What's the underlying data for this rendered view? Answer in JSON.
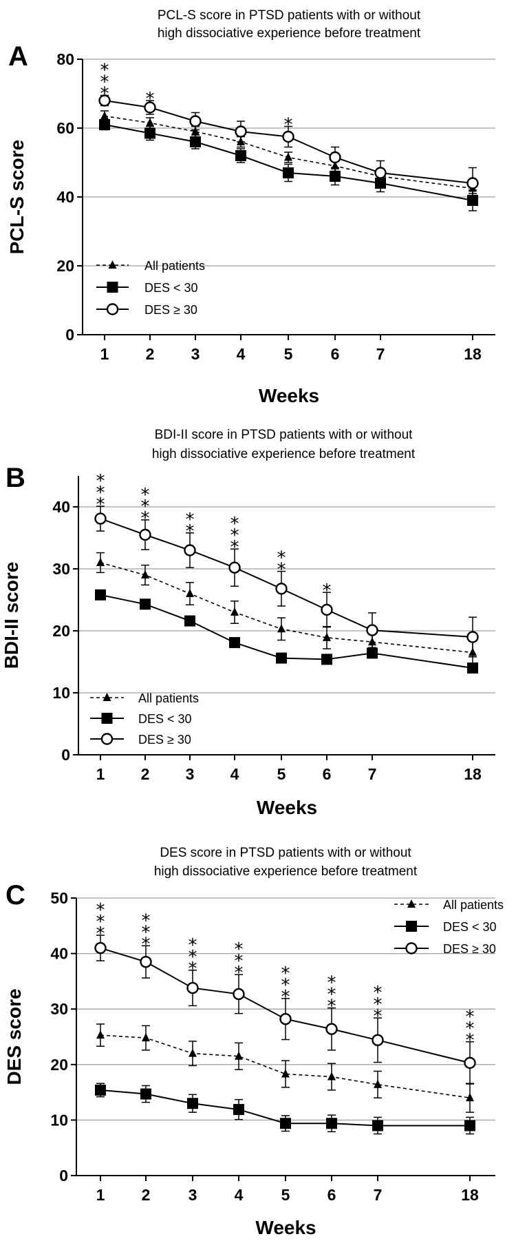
{
  "chart_data": [
    {
      "panel": "A",
      "type": "line",
      "title_lines": [
        "PCL-S score in PTSD patients with or without",
        "high dissociative experience before treatment"
      ],
      "xlabel": "Weeks",
      "ylabel": "PCL-S score",
      "categories": [
        "1",
        "2",
        "3",
        "4",
        "5",
        "6",
        "7",
        "18"
      ],
      "ylim": [
        0,
        80
      ],
      "yticks": [
        0,
        20,
        40,
        60,
        80
      ],
      "grid": true,
      "legend_position": "bottom-left",
      "series": [
        {
          "name": "All patients",
          "marker": "triangle",
          "style": "dashed",
          "values": [
            63.5,
            61.5,
            59,
            56,
            51.5,
            49,
            46,
            42.5
          ],
          "errors": [
            1.5,
            1.5,
            1.5,
            1.5,
            1.5,
            1.5,
            1.5,
            1.5
          ]
        },
        {
          "name": "DES < 30",
          "marker": "square",
          "style": "solid",
          "values": [
            61,
            58.5,
            56,
            52,
            47,
            46,
            44,
            39
          ],
          "errors": [
            1.5,
            2,
            2,
            2,
            2.5,
            2.5,
            2.5,
            3
          ]
        },
        {
          "name": "DES ≥ 30",
          "marker": "circle",
          "style": "solid",
          "values": [
            68,
            66,
            62,
            59,
            57.5,
            51.5,
            47,
            44
          ],
          "errors": [
            1.5,
            2,
            2.5,
            3,
            3,
            3,
            3.5,
            4.5
          ]
        }
      ],
      "annotations": [
        {
          "category": "1",
          "text": "***"
        },
        {
          "category": "2",
          "text": "*"
        },
        {
          "category": "5",
          "text": "*"
        }
      ]
    },
    {
      "panel": "B",
      "type": "line",
      "title_lines": [
        "BDI-II score in PTSD patients with or without",
        "high dissociative experience before treatment"
      ],
      "xlabel": "Weeks",
      "ylabel": "BDI-II score",
      "categories": [
        "1",
        "2",
        "3",
        "4",
        "5",
        "6",
        "7",
        "18"
      ],
      "ylim": [
        0,
        45
      ],
      "yticks": [
        0,
        10,
        20,
        30,
        40
      ],
      "grid": true,
      "legend_position": "bottom-left",
      "series": [
        {
          "name": "All patients",
          "marker": "triangle",
          "style": "dashed",
          "values": [
            31,
            29,
            26,
            23,
            20.3,
            18.9,
            18.2,
            16.5
          ],
          "errors": [
            1.6,
            1.6,
            1.8,
            1.8,
            1.8,
            1.8,
            1.8,
            1.8
          ]
        },
        {
          "name": "DES < 30",
          "marker": "square",
          "style": "solid",
          "values": [
            25.8,
            24.3,
            21.6,
            18.1,
            15.6,
            15.4,
            16.4,
            14
          ]
        },
        {
          "name": "DES ≥ 30",
          "marker": "circle",
          "style": "solid",
          "values": [
            38.1,
            35.5,
            33,
            30.2,
            26.8,
            23.4,
            20.1,
            19
          ],
          "errors": [
            2,
            2.4,
            2.8,
            3,
            2.8,
            2.8,
            2.8,
            3.2
          ]
        }
      ],
      "annotations": [
        {
          "category": "1",
          "text": "***"
        },
        {
          "category": "2",
          "text": "***"
        },
        {
          "category": "3",
          "text": "**"
        },
        {
          "category": "4",
          "text": "***"
        },
        {
          "category": "5",
          "text": "**"
        },
        {
          "category": "6",
          "text": "*"
        }
      ]
    },
    {
      "panel": "C",
      "type": "line",
      "title_lines": [
        "DES score in PTSD patients with or without",
        "high dissociative experience before treatment"
      ],
      "xlabel": "Weeks",
      "ylabel": "DES score",
      "categories": [
        "1",
        "2",
        "3",
        "4",
        "5",
        "6",
        "7",
        "18"
      ],
      "ylim": [
        0,
        50
      ],
      "yticks": [
        0,
        10,
        20,
        30,
        40,
        50
      ],
      "grid": true,
      "legend_position": "top-right",
      "series": [
        {
          "name": "All patients",
          "marker": "triangle",
          "style": "dashed",
          "values": [
            25.3,
            24.8,
            22,
            21.5,
            18.3,
            17.8,
            16.4,
            14
          ],
          "errors": [
            2,
            2.2,
            2.2,
            2.4,
            2.4,
            2.4,
            2.4,
            2.6
          ]
        },
        {
          "name": "DES < 30",
          "marker": "square",
          "style": "solid",
          "values": [
            15.4,
            14.7,
            13,
            11.9,
            9.4,
            9.4,
            9,
            9
          ],
          "errors": [
            1.2,
            1.5,
            1.6,
            1.8,
            1.4,
            1.5,
            1.5,
            1.5
          ]
        },
        {
          "name": "DES ≥ 30",
          "marker": "circle",
          "style": "solid",
          "values": [
            41,
            38.5,
            33.8,
            32.7,
            28.2,
            26.4,
            24.4,
            20.3
          ],
          "errors": [
            2.3,
            2.9,
            3.2,
            3.5,
            3.7,
            3.8,
            4,
            3.8
          ]
        }
      ],
      "annotations": [
        {
          "category": "1",
          "text": "***"
        },
        {
          "category": "2",
          "text": "***"
        },
        {
          "category": "3",
          "text": "***"
        },
        {
          "category": "4",
          "text": "***"
        },
        {
          "category": "5",
          "text": "***"
        },
        {
          "category": "6",
          "text": "***"
        },
        {
          "category": "7",
          "text": "***"
        },
        {
          "category": "18",
          "text": "***"
        }
      ]
    }
  ]
}
